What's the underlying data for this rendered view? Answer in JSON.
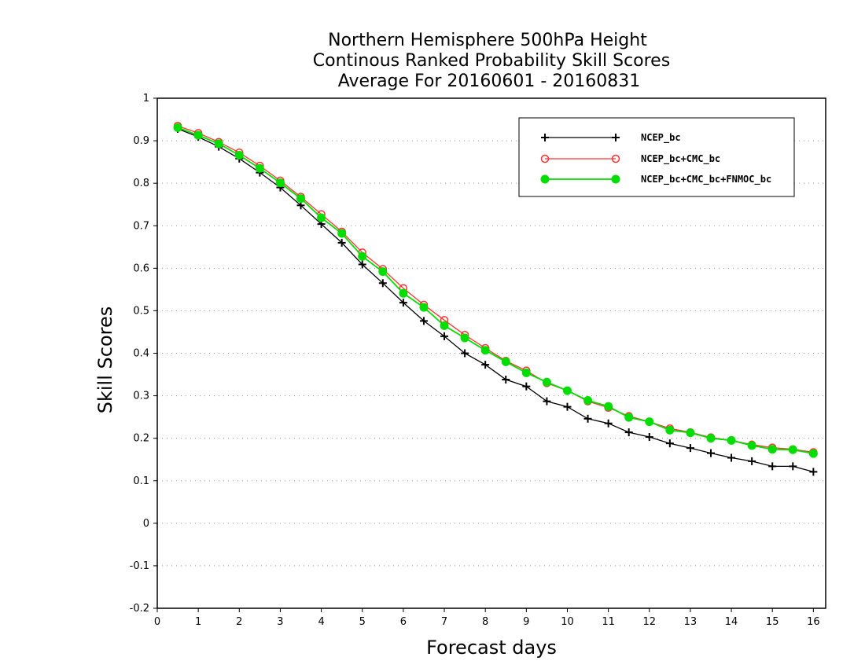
{
  "chart_data": {
    "type": "line",
    "title": [
      "Northern Hemisphere 500hPa Height",
      "Continous Ranked Probability Skill Scores",
      "Average For 20160601 - 20160831"
    ],
    "xlabel": "Forecast days",
    "ylabel": "Skill Scores",
    "xlim": [
      0,
      16.3
    ],
    "ylim": [
      -0.2,
      1.0
    ],
    "xticks": [
      0,
      1,
      2,
      3,
      4,
      5,
      6,
      7,
      8,
      9,
      10,
      11,
      12,
      13,
      14,
      15,
      16
    ],
    "xtick_labels": [
      "0",
      "1",
      "2",
      "3",
      "4",
      "5",
      "6",
      "7",
      "8",
      "9",
      "10",
      "11",
      "12",
      "13",
      "14",
      "15",
      "16"
    ],
    "yticks": [
      -0.2,
      -0.1,
      0,
      0.1,
      0.2,
      0.3,
      0.4,
      0.5,
      0.6,
      0.7,
      0.8,
      0.9,
      1
    ],
    "ytick_labels": [
      "-0.2",
      "-0.1",
      "0",
      "0.1",
      "0.2",
      "0.3",
      "0.4",
      "0.5",
      "0.6",
      "0.7",
      "0.8",
      "0.9",
      "1"
    ],
    "grid": true,
    "legend_position": "top-right",
    "x": [
      0.5,
      1,
      1.5,
      2,
      2.5,
      3,
      3.5,
      4,
      4.5,
      5,
      5.5,
      6,
      6.5,
      7,
      7.5,
      8,
      8.5,
      9,
      9.5,
      10,
      10.5,
      11,
      11.5,
      12,
      12.5,
      13,
      13.5,
      14,
      14.5,
      15,
      15.5,
      16
    ],
    "series": [
      {
        "name": "NCEP_bc",
        "color": "#000000",
        "marker": "plus",
        "values": [
          0.928,
          0.909,
          0.886,
          0.858,
          0.825,
          0.79,
          0.748,
          0.704,
          0.66,
          0.609,
          0.565,
          0.519,
          0.476,
          0.44,
          0.4,
          0.373,
          0.338,
          0.322,
          0.287,
          0.274,
          0.246,
          0.235,
          0.214,
          0.203,
          0.188,
          0.177,
          0.165,
          0.154,
          0.146,
          0.134,
          0.134,
          0.121
        ]
      },
      {
        "name": "NCEP_bc+CMC_bc",
        "color": "#ff3333",
        "marker": "open-circle",
        "values": [
          0.935,
          0.918,
          0.897,
          0.872,
          0.841,
          0.806,
          0.768,
          0.727,
          0.686,
          0.637,
          0.598,
          0.553,
          0.514,
          0.478,
          0.443,
          0.412,
          0.382,
          0.359,
          0.33,
          0.312,
          0.287,
          0.272,
          0.252,
          0.239,
          0.223,
          0.214,
          0.202,
          0.195,
          0.185,
          0.178,
          0.174,
          0.167
        ]
      },
      {
        "name": "NCEP_bc+CMC_bc+FNMOC_bc",
        "color": "#00dd00",
        "marker": "filled-circle",
        "values": [
          0.931,
          0.913,
          0.893,
          0.866,
          0.835,
          0.801,
          0.764,
          0.719,
          0.682,
          0.628,
          0.592,
          0.541,
          0.508,
          0.465,
          0.436,
          0.407,
          0.38,
          0.354,
          0.332,
          0.312,
          0.289,
          0.275,
          0.249,
          0.239,
          0.219,
          0.213,
          0.2,
          0.195,
          0.183,
          0.174,
          0.173,
          0.164
        ]
      }
    ]
  }
}
